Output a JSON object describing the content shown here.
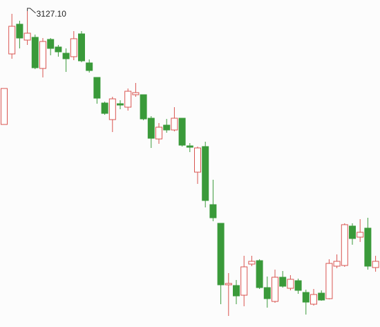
{
  "chart_data": {
    "type": "candlestick",
    "ylim": [
      2578.7,
      3146.3
    ],
    "up_color": "#d9534f",
    "down_color": "#3a9a3a",
    "open": [
      2930.3,
      3052.7,
      3104.3,
      3076.7,
      3081.5,
      3027.5,
      3077.9,
      3064.7,
      3053.9,
      3047.9,
      3087.5,
      3037.1,
      3011.9,
      2967.5,
      2938.7,
      2966.3,
      2960.3,
      2981.9,
      2981.9,
      2941.1,
      2905.1,
      2929.1,
      2920.7,
      2941.1,
      2893.1,
      2847.5,
      2891.9,
      2791.1,
      2758.7,
      2651.9,
      2650.7,
      2633.9,
      2687.9,
      2693.9,
      2647.1,
      2623.1,
      2665.1,
      2645.9,
      2659.1,
      2638.7,
      2618.3,
      2637.5,
      2627.9,
      2684.3,
      2685.5,
      2753.9,
      2734.7,
      2750.3,
      2681.9
    ],
    "high": [
      2992.7,
      3122.3,
      3110.3,
      3127.1,
      3086.3,
      3080.3,
      3080.3,
      3068.3,
      3062.3,
      3092.3,
      3092.3,
      3043.1,
      3011.9,
      2969.9,
      2978.3,
      2972.3,
      2992.7,
      3002.3,
      2981.9,
      2944.7,
      2932.7,
      2939.9,
      2960.3,
      2941.1,
      2897.9,
      2891.9,
      2900.3,
      2834.3,
      2758.7,
      2672.3,
      2660.3,
      2702.3,
      2702.3,
      2696.3,
      2666.3,
      2678.3,
      2675.9,
      2668.7,
      2662.7,
      2643.5,
      2644.7,
      2642.3,
      2696.3,
      2704.7,
      2758.7,
      2758.7,
      2765.9,
      2768.3,
      2702.3
    ],
    "low": [
      2930.3,
      3044.3,
      3062.3,
      3068.3,
      3026.3,
      3011.9,
      3050.3,
      3047.9,
      3021.5,
      3041.9,
      3038.3,
      3020.3,
      2966.3,
      2947.1,
      2917.1,
      2956.7,
      2954.3,
      2978.3,
      2937.5,
      2889.5,
      2896.7,
      2915.9,
      2918.3,
      2891.9,
      2882.3,
      2827.1,
      2786.3,
      2762.3,
      2618.3,
      2597.9,
      2618.3,
      2614.7,
      2684.3,
      2644.7,
      2612.3,
      2620.7,
      2647.1,
      2642.3,
      2636.3,
      2600.3,
      2615.9,
      2624.3,
      2626.7,
      2680.7,
      2683.1,
      2721.5,
      2726.3,
      2678.3,
      2674.7
    ],
    "close": [
      2992.7,
      3100.7,
      3080.3,
      3088.7,
      3028.7,
      3074.3,
      3062.3,
      3056.3,
      3044.3,
      3079.1,
      3040.7,
      3023.9,
      2975.9,
      2949.5,
      2974.7,
      2963.9,
      2987.9,
      2985.5,
      2939.9,
      2906.3,
      2925.5,
      2920.7,
      2941.1,
      2894.3,
      2890.7,
      2889.5,
      2798.3,
      2768.3,
      2651.9,
      2654.3,
      2632.7,
      2683.1,
      2692.7,
      2647.1,
      2627.9,
      2665.1,
      2649.5,
      2661.5,
      2642.3,
      2621.9,
      2635.1,
      2625.5,
      2689.1,
      2692.7,
      2756.3,
      2732.3,
      2743.1,
      2684.3,
      2692.7
    ],
    "annotations": [
      {
        "label": "3127.10",
        "value": 3127.1
      }
    ]
  }
}
